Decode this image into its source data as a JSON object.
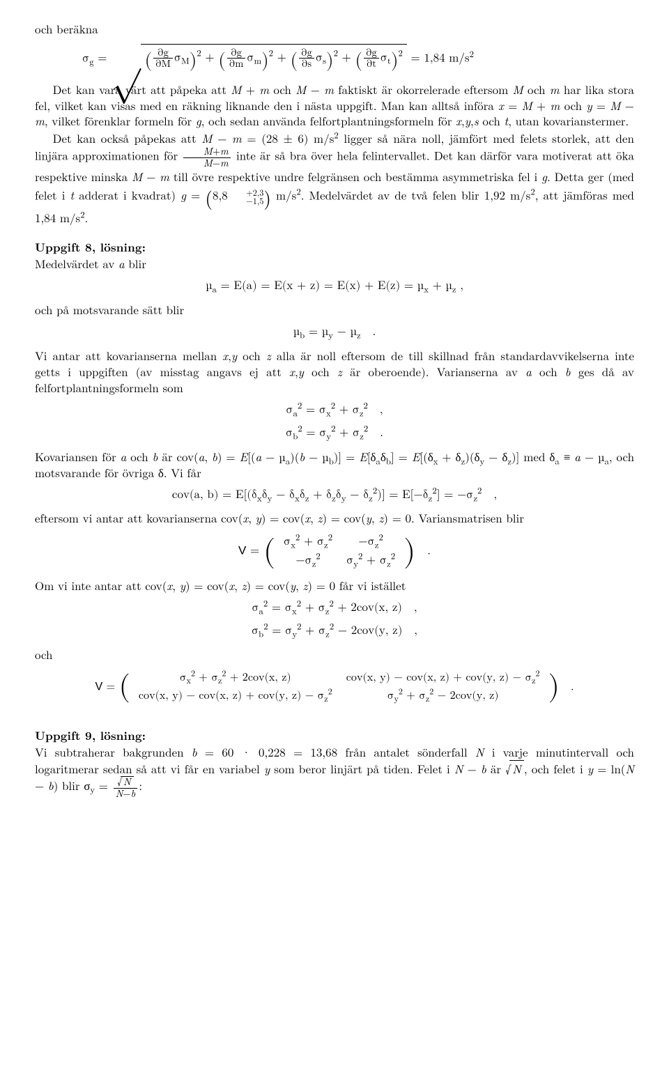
{
  "intro_line": "och beräkna",
  "eq_sigma_g": {
    "lhs": "σ<sub>g</sub> = ",
    "radical_terms": [
      {
        "partial": "∂g",
        "denom": "∂M",
        "sigma": "σ<sub>M</sub>"
      },
      {
        "partial": "∂g",
        "denom": "∂m",
        "sigma": "σ<sub>m</sub>"
      },
      {
        "partial": "∂g",
        "denom": "∂s",
        "sigma": "σ<sub>s</sub>"
      },
      {
        "partial": "∂g",
        "denom": "∂t",
        "sigma": "σ<sub>t</sub>"
      }
    ],
    "rhs_val": " = 1,84 m/s<sup>2</sup>"
  },
  "para1": "Det kan vara värt att påpeka att <i>M</i> + <i>m</i> och <i>M</i> − <i>m</i> faktiskt är okorrelerade eftersom <i>M</i> och <i>m</i> har lika stora fel, vilket kan visas med en räkning liknande den i nästa uppgift. Man kan alltså införa <i>x</i> = <i>M</i> + <i>m</i> och <i>y</i> = <i>M</i> − <i>m</i>, vilket förenklar formeln för <i>g</i>, och sedan använda felfortplantningsformeln för <i>x</i>,<i>y</i>,<i>s</i> och <i>t</i>, utan kovarianstermer.",
  "para2a": "Det kan också påpekas att <i>M</i> − <i>m</i> = (28 ± 6) m/s<sup>2</sup> ligger så nära noll, jämfört med felets storlek, att den linjära approximationen för ",
  "para2_frac": {
    "num": "<i>M</i>+<i>m</i>",
    "den": "<i>M</i>−<i>m</i>"
  },
  "para2b": " inte är så bra över hela felintervallet. Det kan därför vara motiverat att öka respektive minska <i>M</i> − <i>m</i> till övre respektive undre felgränsen och bestämma asymmetriska fel i <i>g</i>. Detta ger (med felet i <i>t</i> adderat i kvadrat) <i>g</i> = ",
  "para2_val": "8,8",
  "para2_sup": "+2,3",
  "para2_sub": "−1,5",
  "para2c": " m/s<sup>2</sup>. Medelvärdet av de två felen blir 1,92 m/s<sup>2</sup>, att jämföras med 1,84 m/s<sup>2</sup>.",
  "h8": "Uppgift 8, lösning:",
  "p8a": "Medelvärdet av <i>a</i> blir",
  "eq_mu_a": "µ<sub>a</sub> = E(a) = E(x + z) = E(x) + E(z) = µ<sub>x</sub> + µ<sub>z</sub> ,",
  "p8b": "och på motsvarande sätt blir",
  "eq_mu_b": "µ<sub>b</sub> = µ<sub>y</sub> − µ<sub>z</sub>&nbsp;&nbsp;&nbsp;.",
  "p8c": "Vi antar att kovarianserna mellan <i>x</i>,<i>y</i> och <i>z</i> alla är noll eftersom de till skillnad från standardavvikelserna inte getts i uppgiften (av misstag angavs ej att <i>x</i>,<i>y</i> och <i>z</i> är oberoende). Varianserna av <i>a</i> och <i>b</i> ges då av felfortplantningsformeln som",
  "eq_var_a": "σ<sub>a</sub><sup>2</sup> = σ<sub>x</sub><sup>2</sup> + σ<sub>z</sub><sup>2</sup>&nbsp;&nbsp;&nbsp;,",
  "eq_var_b": "σ<sub>b</sub><sup>2</sup> = σ<sub>y</sub><sup>2</sup> + σ<sub>z</sub><sup>2</sup>&nbsp;&nbsp;&nbsp;.",
  "p8d": "Kovariansen för <i>a</i> och <i>b</i> är cov(<i>a</i>, <i>b</i>) = <i>E</i>[(<i>a</i> − µ<sub>a</sub>)(<i>b</i> − µ<sub>b</sub>)] = <i>E</i>[δ<sub>a</sub>δ<sub>b</sub>] = <i>E</i>[(δ<sub>x</sub> + δ<sub>z</sub>)(δ<sub>y</sub> − δ<sub>z</sub>)] med δ<sub>a</sub> ≡ <i>a</i> − µ<sub>a</sub>, och motsvarande för övriga δ. Vi får",
  "eq_cov_ab": "cov(a, b) = E[(δ<sub>x</sub>δ<sub>y</sub> − δ<sub>x</sub>δ<sub>z</sub> + δ<sub>z</sub>δ<sub>y</sub> − δ<sub>z</sub><sup>2</sup>)] = E[−δ<sub>z</sub><sup>2</sup>] = −σ<sub>z</sub><sup>2</sup>&nbsp;&nbsp;&nbsp;,",
  "p8e": "eftersom vi antar att kovarianserna cov(<i>x</i>, <i>y</i>) = cov(<i>x</i>, <i>z</i>) = cov(<i>y</i>, <i>z</i>) = 0. Variansmatrisen blir",
  "matrix_V1": {
    "lhs": "<span class=\"sans\">V</span> = ",
    "rows": [
      [
        "σ<sub>x</sub><sup>2</sup> + σ<sub>z</sub><sup>2</sup>",
        "−σ<sub>z</sub><sup>2</sup>"
      ],
      [
        "−σ<sub>z</sub><sup>2</sup>",
        "σ<sub>y</sub><sup>2</sup> + σ<sub>z</sub><sup>2</sup>"
      ]
    ],
    "trail": "&nbsp;&nbsp;&nbsp;."
  },
  "p8f": "Om vi inte antar att cov(<i>x</i>, <i>y</i>) = cov(<i>x</i>, <i>z</i>) = cov(<i>y</i>, <i>z</i>) = 0 får vi istället",
  "eq_var_a2": "σ<sub>a</sub><sup>2</sup> = σ<sub>x</sub><sup>2</sup> + σ<sub>z</sub><sup>2</sup> + 2cov(x, z)&nbsp;&nbsp;&nbsp;,",
  "eq_var_b2": "σ<sub>b</sub><sup>2</sup> = σ<sub>y</sub><sup>2</sup> + σ<sub>z</sub><sup>2</sup> − 2cov(y, z)&nbsp;&nbsp;&nbsp;,",
  "p8g": "och",
  "matrix_V2": {
    "lhs": "<span class=\"sans\">V</span> = ",
    "rows": [
      [
        "σ<sub>x</sub><sup>2</sup> + σ<sub>z</sub><sup>2</sup> + 2cov(x, z)",
        "cov(x, y) − cov(x, z) + cov(y, z) − σ<sub>z</sub><sup>2</sup>"
      ],
      [
        "cov(x, y) − cov(x, z) + cov(y, z) − σ<sub>z</sub><sup>2</sup>",
        "σ<sub>y</sub><sup>2</sup> + σ<sub>z</sub><sup>2</sup> − 2cov(y, z)"
      ]
    ],
    "trail": "&nbsp;&nbsp;&nbsp;."
  },
  "h9": "Uppgift 9, lösning:",
  "p9a": "Vi subtraherar bakgrunden <i>b</i> = 60 · 0,228 = 13,68 från antalet sönderfall <i>N</i> i varje minutintervall och logaritmerar sedan så att vi får en variabel <i>y</i> som beror linjärt på tiden. Felet i <i>N</i> − <i>b</i> är ",
  "p9b": ", och felet i <i>y</i> = ln(<i>N</i> − <i>b</i>) blir σ<sub>y</sub> = ",
  "p9_frac": {
    "num": "√<span class=\"sqrt\"><i>N</i></span>",
    "den": "<i>N</i>−<i>b</i>"
  },
  "p9c": ":",
  "sqrtN": "√<span class=\"sqrt\"><i>N</i></span>"
}
